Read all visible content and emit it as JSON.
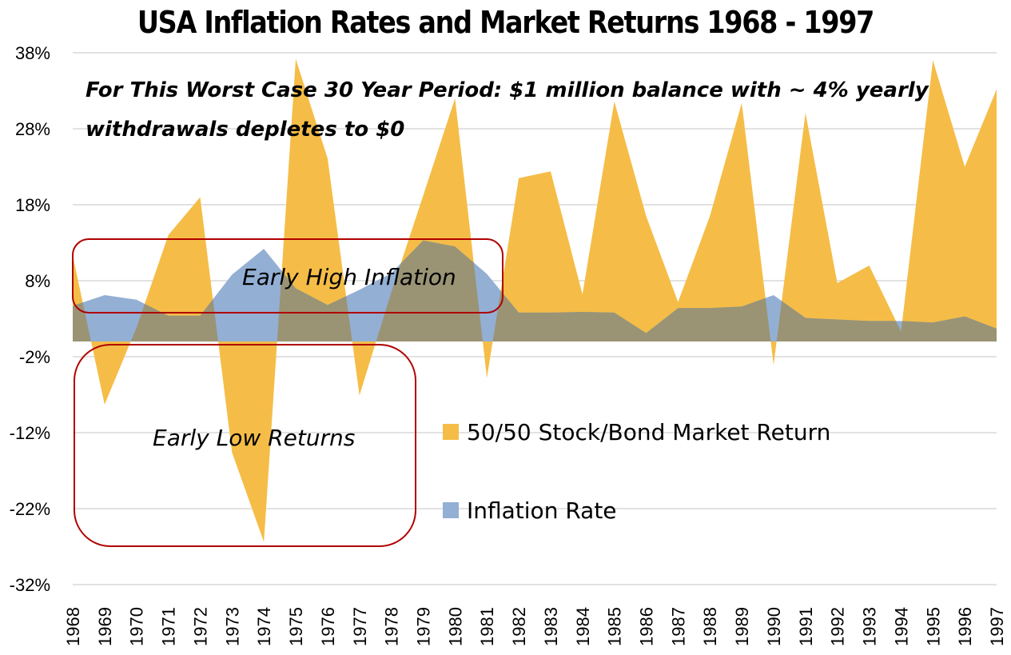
{
  "chart_data": {
    "type": "area",
    "title": "USA Inflation Rates and Market Returns 1968 - 1997",
    "subtitle": [
      "For This Worst Case 30 Year Period: $1 million balance with ~ 4% yearly",
      "withdrawals depletes to $0"
    ],
    "xlabel": "",
    "ylabel": "",
    "ylim": [
      -32,
      38
    ],
    "yticks": [
      38,
      28,
      18,
      8,
      -2,
      -12,
      -22,
      -32
    ],
    "ytick_labels": [
      "38%",
      "28%",
      "18%",
      "8%",
      "-2%",
      "-12%",
      "-22%",
      "-32%"
    ],
    "grid": true,
    "legend_position": "center-right",
    "categories": [
      "1968",
      "1969",
      "1970",
      "1971",
      "1972",
      "1973",
      "1974",
      "1975",
      "1976",
      "1977",
      "1978",
      "1979",
      "1980",
      "1981",
      "1982",
      "1983",
      "1984",
      "1985",
      "1986",
      "1987",
      "1988",
      "1989",
      "1990",
      "1991",
      "1992",
      "1993",
      "1994",
      "1995",
      "1996",
      "1997"
    ],
    "series": [
      {
        "name": "50/50 Stock/Bond Market Return",
        "color": "#F5BD47",
        "values": [
          11.3,
          -8.3,
          1.8,
          14.0,
          19.0,
          -14.6,
          -26.4,
          37.2,
          24.1,
          -7.1,
          6.5,
          19.2,
          32.0,
          -4.8,
          21.5,
          22.4,
          6.2,
          31.6,
          16.5,
          5.2,
          16.5,
          31.4,
          -3.1,
          30.1,
          7.7,
          10.0,
          1.3,
          37.0,
          23.0,
          33.2
        ]
      },
      {
        "name": "Inflation Rate",
        "color": "#93AFD4",
        "values": [
          4.7,
          6.1,
          5.5,
          3.4,
          3.4,
          8.8,
          12.2,
          7.0,
          4.8,
          6.8,
          9.0,
          13.3,
          12.5,
          8.9,
          3.8,
          3.8,
          3.9,
          3.8,
          1.1,
          4.4,
          4.4,
          4.6,
          6.1,
          3.1,
          2.9,
          2.7,
          2.7,
          2.5,
          3.3,
          1.7
        ]
      }
    ],
    "overlap_color": "#9A9475",
    "annotations": [
      {
        "text": "Early High Inflation",
        "box_color": "#B00000",
        "years": [
          "1968",
          "1981"
        ]
      },
      {
        "text": "Early Low Returns",
        "box_color": "#B00000",
        "years": [
          "1968",
          "1978"
        ]
      }
    ]
  }
}
